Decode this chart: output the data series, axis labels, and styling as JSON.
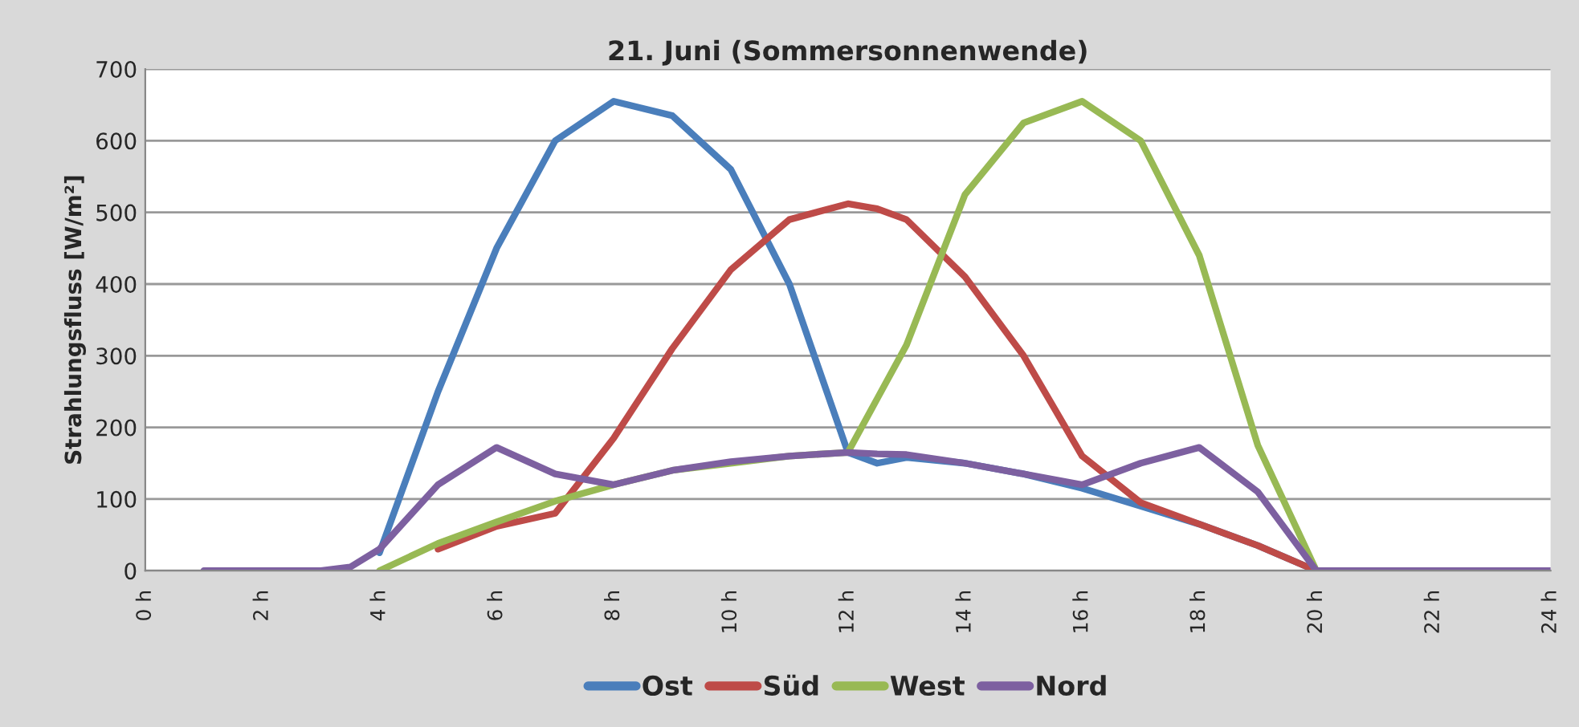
{
  "chart_data": {
    "type": "line",
    "title": "21. Juni (Sommersonnenwende)",
    "ylabel": "Strahlungsfluss [W/m²]",
    "x": [
      1,
      2,
      3,
      3.5,
      4,
      5,
      6,
      7,
      8,
      9,
      10,
      11,
      12,
      12.5,
      13,
      14,
      15,
      16,
      17,
      18,
      19,
      20,
      21,
      22,
      23,
      24
    ],
    "series": [
      {
        "name": "Ost",
        "color": "#4a7ebb",
        "values": [
          null,
          null,
          null,
          null,
          25,
          250,
          450,
          600,
          655,
          635,
          560,
          400,
          165,
          150,
          158,
          150,
          135,
          115,
          90,
          65,
          35,
          0,
          null,
          null,
          null,
          null
        ]
      },
      {
        "name": "Süd",
        "color": "#be4b48",
        "values": [
          null,
          null,
          null,
          null,
          null,
          30,
          62,
          80,
          185,
          310,
          420,
          490,
          512,
          505,
          490,
          410,
          300,
          160,
          95,
          65,
          35,
          0,
          null,
          null,
          null,
          null
        ]
      },
      {
        "name": "West",
        "color": "#98b954",
        "values": [
          null,
          null,
          null,
          null,
          0,
          38,
          68,
          97,
          120,
          140,
          150,
          160,
          165,
          240,
          315,
          525,
          625,
          655,
          600,
          440,
          175,
          0,
          null,
          null,
          null,
          null
        ]
      },
      {
        "name": "Nord",
        "color": "#7d60a0",
        "values": [
          0,
          0,
          0,
          5,
          30,
          120,
          172,
          135,
          120,
          140,
          152,
          160,
          165,
          163,
          162,
          150,
          135,
          120,
          150,
          172,
          110,
          0,
          0,
          0,
          0,
          0
        ]
      }
    ],
    "xlim": [
      0,
      24
    ],
    "xticks": [
      {
        "value": 0,
        "label": "0 h"
      },
      {
        "value": 2,
        "label": "2 h"
      },
      {
        "value": 4,
        "label": "4 h"
      },
      {
        "value": 6,
        "label": "6 h"
      },
      {
        "value": 8,
        "label": "8 h"
      },
      {
        "value": 10,
        "label": "10 h"
      },
      {
        "value": 12,
        "label": "12 h"
      },
      {
        "value": 14,
        "label": "14 h"
      },
      {
        "value": 16,
        "label": "16 h"
      },
      {
        "value": 18,
        "label": "18 h"
      },
      {
        "value": 20,
        "label": "20 h"
      },
      {
        "value": 22,
        "label": "22 h"
      },
      {
        "value": 24,
        "label": "24 h"
      }
    ],
    "ylim": [
      0,
      700
    ],
    "yticks": [
      0,
      100,
      200,
      300,
      400,
      500,
      600,
      700
    ],
    "grid": "y",
    "legend": "bottom",
    "line_style": "solid",
    "marker": "none"
  }
}
